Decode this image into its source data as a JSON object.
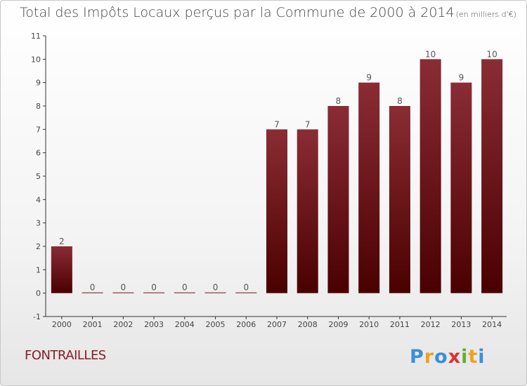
{
  "chart_data": {
    "type": "bar",
    "title": "Total des Impôts Locaux perçus par la Commune de 2000 à 2014",
    "subtitle": "(en milliers d'€)",
    "categories": [
      "2000",
      "2001",
      "2002",
      "2003",
      "2004",
      "2005",
      "2006",
      "2007",
      "2008",
      "2009",
      "2010",
      "2011",
      "2012",
      "2013",
      "2014"
    ],
    "values": [
      2,
      0,
      0,
      0,
      0,
      0,
      0,
      7,
      7,
      8,
      9,
      8,
      10,
      9,
      10
    ],
    "ylim": [
      -1,
      11
    ],
    "yticks": [
      -1,
      0,
      1,
      2,
      3,
      4,
      5,
      6,
      7,
      8,
      9,
      10,
      11
    ],
    "grid": false,
    "bar_color_top": "#8a2c34",
    "bar_color_bottom": "#4a0000"
  },
  "footer": {
    "commune": "FONTRAILLES",
    "logo_text": "Proxiti"
  }
}
